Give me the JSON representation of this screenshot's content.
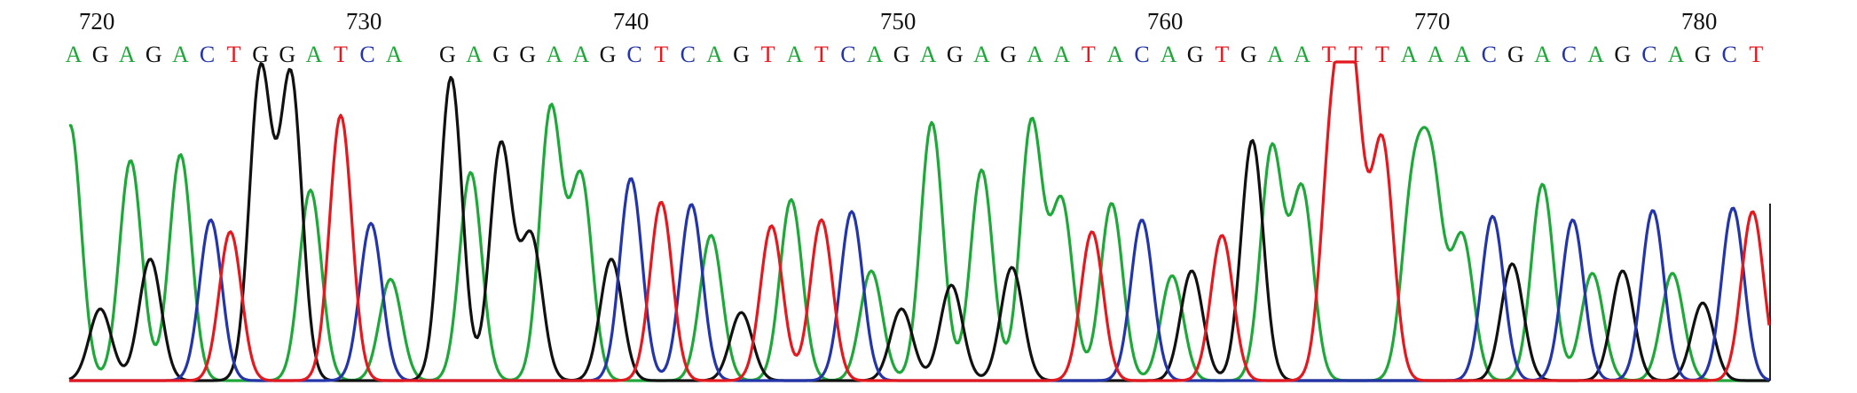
{
  "ruler": [
    720,
    730,
    740,
    750,
    760,
    770,
    780
  ],
  "bases": [
    "A",
    "G",
    "A",
    "G",
    "A",
    "C",
    "T",
    "G",
    "G",
    "A",
    "T",
    "C",
    "A",
    null,
    "G",
    "A",
    "G",
    "G",
    "A",
    "A",
    "G",
    "C",
    "T",
    "C",
    "A",
    "G",
    "T",
    "A",
    "T",
    "C",
    "A",
    "G",
    "A",
    "G",
    "A",
    "G",
    "A",
    "A",
    "T",
    "A",
    "C",
    "A",
    "G",
    "T",
    "G",
    "A",
    "A",
    "T",
    "T",
    "T",
    "A",
    "A",
    "A",
    "C",
    "G",
    "A",
    "C",
    "A",
    "G",
    "C",
    "A",
    "G",
    "C",
    "T"
  ],
  "base_colors": {
    "A": "#1fa83a",
    "C": "#2335a8",
    "G": "#111111",
    "T": "#e3191f"
  }
}
